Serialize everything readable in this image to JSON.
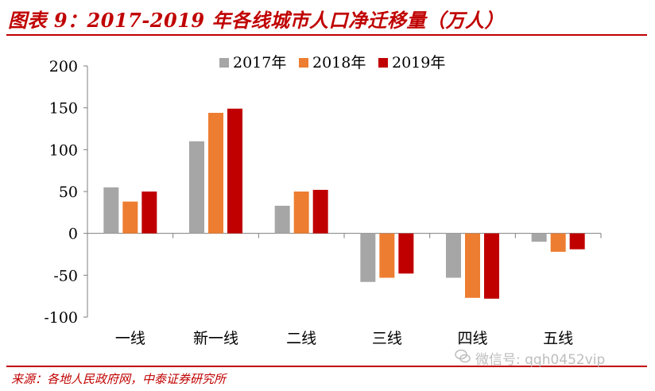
{
  "header": {
    "title": "图表 9：2017-2019 年各线城市人口净迁移量（万人）"
  },
  "footer": {
    "source": "来源：各地人民政府网，中泰证券研究所",
    "watermark": "微信号: qqh0452vip"
  },
  "chart_data": {
    "type": "bar",
    "title": "",
    "xlabel": "",
    "ylabel": "",
    "categories": [
      "一线",
      "新一线",
      "二线",
      "三线",
      "四线",
      "五线"
    ],
    "series": [
      {
        "name": "2017年",
        "color": "#a6a6a6",
        "values": [
          55,
          110,
          33,
          -58,
          -53,
          -10
        ]
      },
      {
        "name": "2018年",
        "color": "#ed7d31",
        "values": [
          38,
          144,
          50,
          -53,
          -77,
          -22
        ]
      },
      {
        "name": "2019年",
        "color": "#c00000",
        "values": [
          50,
          149,
          52,
          -48,
          -78,
          -19
        ]
      }
    ],
    "ylim": [
      -100,
      200
    ],
    "yticks": [
      200,
      150,
      100,
      50,
      0,
      -50,
      -100
    ],
    "grid": false,
    "legend_position": "top-center"
  }
}
